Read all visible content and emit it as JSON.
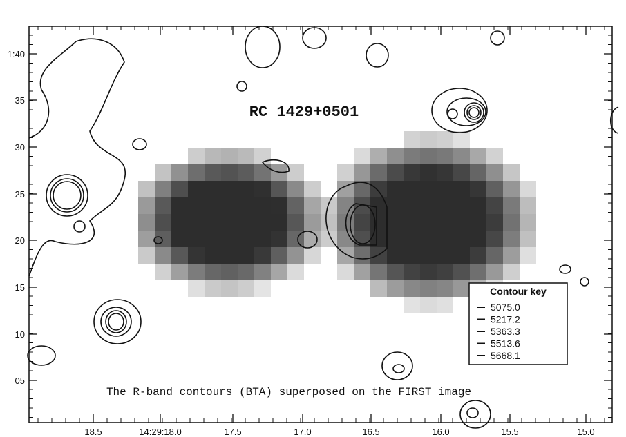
{
  "figure": {
    "title": "RC 1429+0501",
    "caption": "The R-band contours (BTA) superposed on the FIRST image",
    "legend": {
      "title": "Contour key",
      "entries": [
        "5075.0",
        "5217.2",
        "5363.3",
        "5513.6",
        "5668.1"
      ]
    },
    "x_axis": {
      "labels": [
        "18.5",
        "14:29:18.0",
        "17.5",
        "17.0",
        "16.5",
        "16.0",
        "15.5",
        "15.0"
      ]
    },
    "y_axis": {
      "labels": [
        "1:40",
        "35",
        "30",
        "25",
        "20",
        "15",
        "10",
        "05"
      ]
    }
  }
}
